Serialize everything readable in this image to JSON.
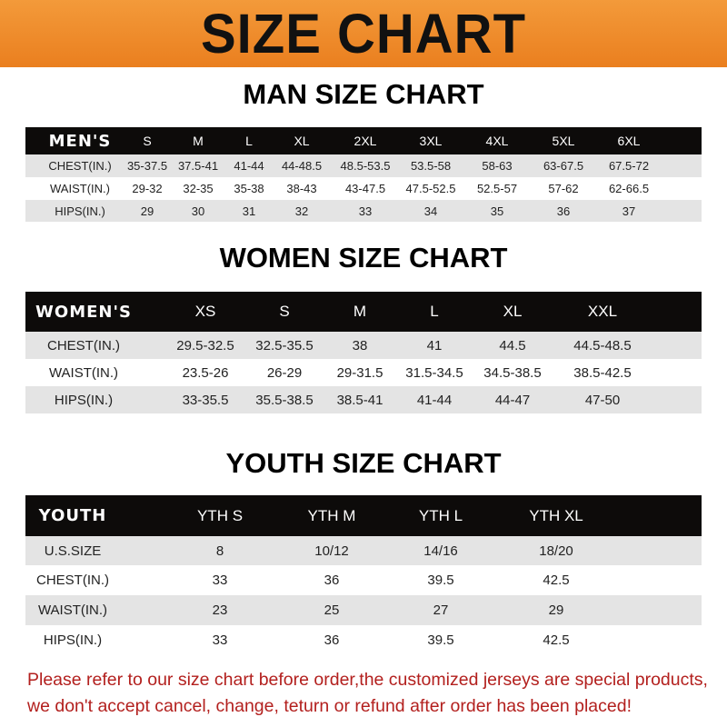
{
  "title": "SIZE CHART",
  "colors": {
    "banner": "#ee8a2b",
    "header_row": "#0d0b0a",
    "stripe": "#e4e4e4",
    "notice": "#b3201e"
  },
  "men": {
    "title": "MAN SIZE CHART",
    "columns": [
      "MEN'S",
      "S",
      "M",
      "L",
      "XL",
      "2XL",
      "3XL",
      "4XL",
      "5XL",
      "6XL"
    ],
    "rows": [
      [
        "CHEST(IN.)",
        "35-37.5",
        "37.5-41",
        "41-44",
        "44-48.5",
        "48.5-53.5",
        "53.5-58",
        "58-63",
        "63-67.5",
        "67.5-72"
      ],
      [
        "WAIST(IN.)",
        "29-32",
        "32-35",
        "35-38",
        "38-43",
        "43-47.5",
        "47.5-52.5",
        "52.5-57",
        "57-62",
        "62-66.5"
      ],
      [
        "HIPS(IN.)",
        "29",
        "30",
        "31",
        "32",
        "33",
        "34",
        "35",
        "36",
        "37"
      ]
    ]
  },
  "women": {
    "title": "WOMEN SIZE CHART",
    "columns": [
      "WOMEN'S",
      "XS",
      "S",
      "M",
      "L",
      "XL",
      "XXL"
    ],
    "rows": [
      [
        "CHEST(IN.)",
        "29.5-32.5",
        "32.5-35.5",
        "38",
        "41",
        "44.5",
        "44.5-48.5"
      ],
      [
        "WAIST(IN.)",
        "23.5-26",
        "26-29",
        "29-31.5",
        "31.5-34.5",
        "34.5-38.5",
        "38.5-42.5"
      ],
      [
        "HIPS(IN.)",
        "33-35.5",
        "35.5-38.5",
        "38.5-41",
        "41-44",
        "44-47",
        "47-50"
      ]
    ]
  },
  "youth": {
    "title": "YOUTH SIZE CHART",
    "columns": [
      "YOUTH",
      "YTH S",
      "YTH M",
      "YTH L",
      "YTH XL"
    ],
    "rows": [
      [
        "U.S.SIZE",
        "8",
        "10/12",
        "14/16",
        "18/20"
      ],
      [
        "CHEST(IN.)",
        "33",
        "36",
        "39.5",
        "42.5"
      ],
      [
        "WAIST(IN.)",
        "23",
        "25",
        "27",
        "29"
      ],
      [
        "HIPS(IN.)",
        "33",
        "36",
        "39.5",
        "42.5"
      ]
    ]
  },
  "notice": {
    "line1": "Please refer to our size chart before order,the customized jerseys are special products,",
    "line2": "we don't accept cancel, change, teturn or refund after order has been placed!"
  }
}
